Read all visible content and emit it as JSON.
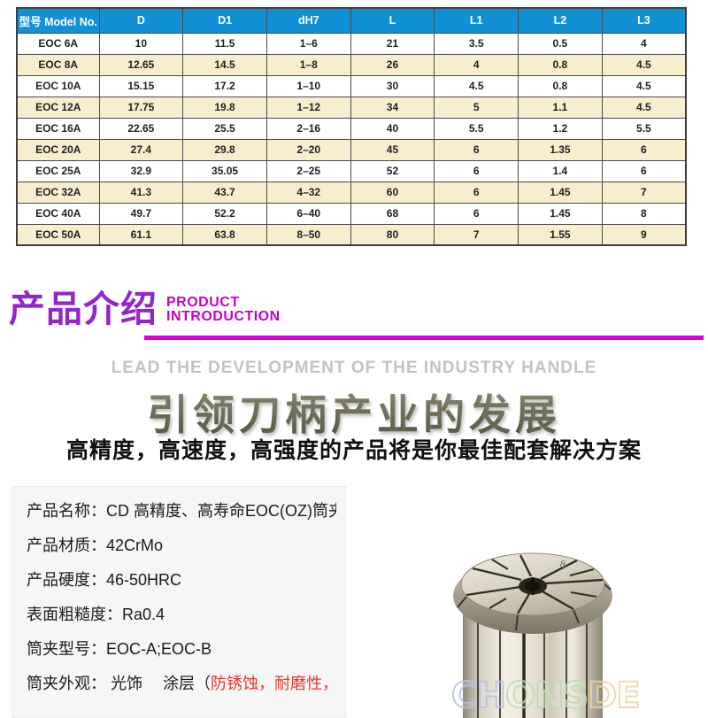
{
  "table": {
    "columns": [
      "型号 Model No.",
      "D",
      "D1",
      "dH7",
      "L",
      "L1",
      "L2",
      "L3"
    ],
    "rows": [
      [
        "EOC 6A",
        "10",
        "11.5",
        "1–6",
        "21",
        "3.5",
        "0.5",
        "4"
      ],
      [
        "EOC 8A",
        "12.65",
        "14.5",
        "1–8",
        "26",
        "4",
        "0.8",
        "4.5"
      ],
      [
        "EOC 10A",
        "15.15",
        "17.2",
        "1–10",
        "30",
        "4.5",
        "0.8",
        "4.5"
      ],
      [
        "EOC 12A",
        "17.75",
        "19.8",
        "1–12",
        "34",
        "5",
        "1.1",
        "4.5"
      ],
      [
        "EOC 16A",
        "22.65",
        "25.5",
        "2–16",
        "40",
        "5.5",
        "1.2",
        "5.5"
      ],
      [
        "EOC 20A",
        "27.4",
        "29.8",
        "2–20",
        "45",
        "6",
        "1.35",
        "6"
      ],
      [
        "EOC 25A",
        "32.9",
        "35.05",
        "2–25",
        "52",
        "6",
        "1.4",
        "6"
      ],
      [
        "EOC 32A",
        "41.3",
        "43.7",
        "4–32",
        "60",
        "6",
        "1.45",
        "7"
      ],
      [
        "EOC 40A",
        "49.7",
        "52.2",
        "6–40",
        "68",
        "6",
        "1.45",
        "8"
      ],
      [
        "EOC 50A",
        "61.1",
        "63.8",
        "8–50",
        "80",
        "7",
        "1.55",
        "9"
      ]
    ]
  },
  "section_header": {
    "title_zh": "产品介绍",
    "title_en_line1": "PRODUCT",
    "title_en_line2": "INTRODUCTION"
  },
  "hero": {
    "tagline_en": "LEAD THE DEVELOPMENT OF THE INDUSTRY HANDLE",
    "headline_zh": "引领刀柄产业的发展",
    "subline_zh": "高精度，高速度，高强度的产品将是你最佳配套解决方案"
  },
  "specs": {
    "items": [
      {
        "text": "产品名称：CD 高精度、高寿命EOC(OZ)筒夹"
      },
      {
        "text": "产品材质：42CrMo"
      },
      {
        "text": "产品硬度：46-50HRC"
      },
      {
        "text": "表面粗糙度：Ra0.4"
      },
      {
        "text": "筒夹型号：EOC-A;EOC-B"
      },
      {
        "text": "筒夹外观： 光饰　 涂层（",
        "highlight": "防锈蚀，耐磨性，清洁度"
      }
    ]
  },
  "product_image": {
    "marking": "8",
    "watermark_segments": [
      {
        "text": "CH",
        "color": "#b7c0e6"
      },
      {
        "text": "ONS",
        "color": "#bddcae"
      },
      {
        "text": "DE",
        "color": "#f2d4a4"
      }
    ]
  },
  "colors": {
    "header_blue": "#1090D5",
    "row_cream": "#F8EECD",
    "accent_purple": "#9326CB",
    "accent_magenta": "#C800C8",
    "underline_magenta": "#DD00DD",
    "highlight_red": "#E8392B"
  }
}
